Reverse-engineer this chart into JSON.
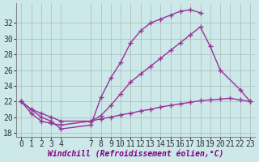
{
  "xlabel": "Windchill (Refroidissement éolien,°C)",
  "ylabel": "",
  "bg_color": "#cce8e8",
  "line_color": "#993399",
  "grid_color": "#aabbbb",
  "xlim": [
    -0.5,
    23.5
  ],
  "ylim": [
    17.5,
    34.5
  ],
  "yticks": [
    18,
    20,
    22,
    24,
    26,
    28,
    30,
    32
  ],
  "xticks": [
    0,
    1,
    2,
    3,
    4,
    7,
    8,
    9,
    10,
    11,
    12,
    13,
    14,
    15,
    16,
    17,
    18,
    19,
    20,
    21,
    22,
    23
  ],
  "line1_x": [
    0,
    1,
    2,
    3,
    4,
    7,
    8,
    9,
    10,
    11,
    12,
    13,
    14,
    15,
    16,
    17,
    18
  ],
  "line1_y": [
    22.0,
    21.0,
    20.0,
    19.5,
    18.5,
    19.0,
    22.5,
    25.0,
    27.0,
    29.5,
    31.0,
    32.0,
    32.5,
    33.0,
    33.5,
    33.7,
    33.3
  ],
  "line2_x": [
    0,
    1,
    2,
    3,
    4,
    7,
    8,
    9,
    10,
    11,
    12,
    13,
    14,
    15,
    16,
    17,
    18,
    19,
    20,
    22,
    23
  ],
  "line2_y": [
    22.0,
    20.5,
    19.5,
    19.2,
    19.0,
    19.5,
    20.2,
    21.5,
    23.0,
    24.5,
    25.5,
    26.5,
    27.5,
    28.5,
    29.5,
    30.5,
    31.5,
    29.0,
    26.0,
    23.5,
    22.0
  ],
  "line3_x": [
    0,
    1,
    2,
    3,
    4,
    7,
    8,
    9,
    10,
    11,
    12,
    13,
    14,
    15,
    16,
    17,
    18,
    19,
    20,
    21,
    22,
    23
  ],
  "line3_y": [
    22.0,
    21.0,
    20.5,
    20.0,
    19.5,
    19.5,
    19.8,
    20.0,
    20.3,
    20.5,
    20.8,
    21.0,
    21.3,
    21.5,
    21.7,
    21.9,
    22.1,
    22.2,
    22.3,
    22.4,
    22.2,
    22.0
  ],
  "font_size": 7,
  "marker": "+",
  "marker_size": 4,
  "line_width": 1.0
}
